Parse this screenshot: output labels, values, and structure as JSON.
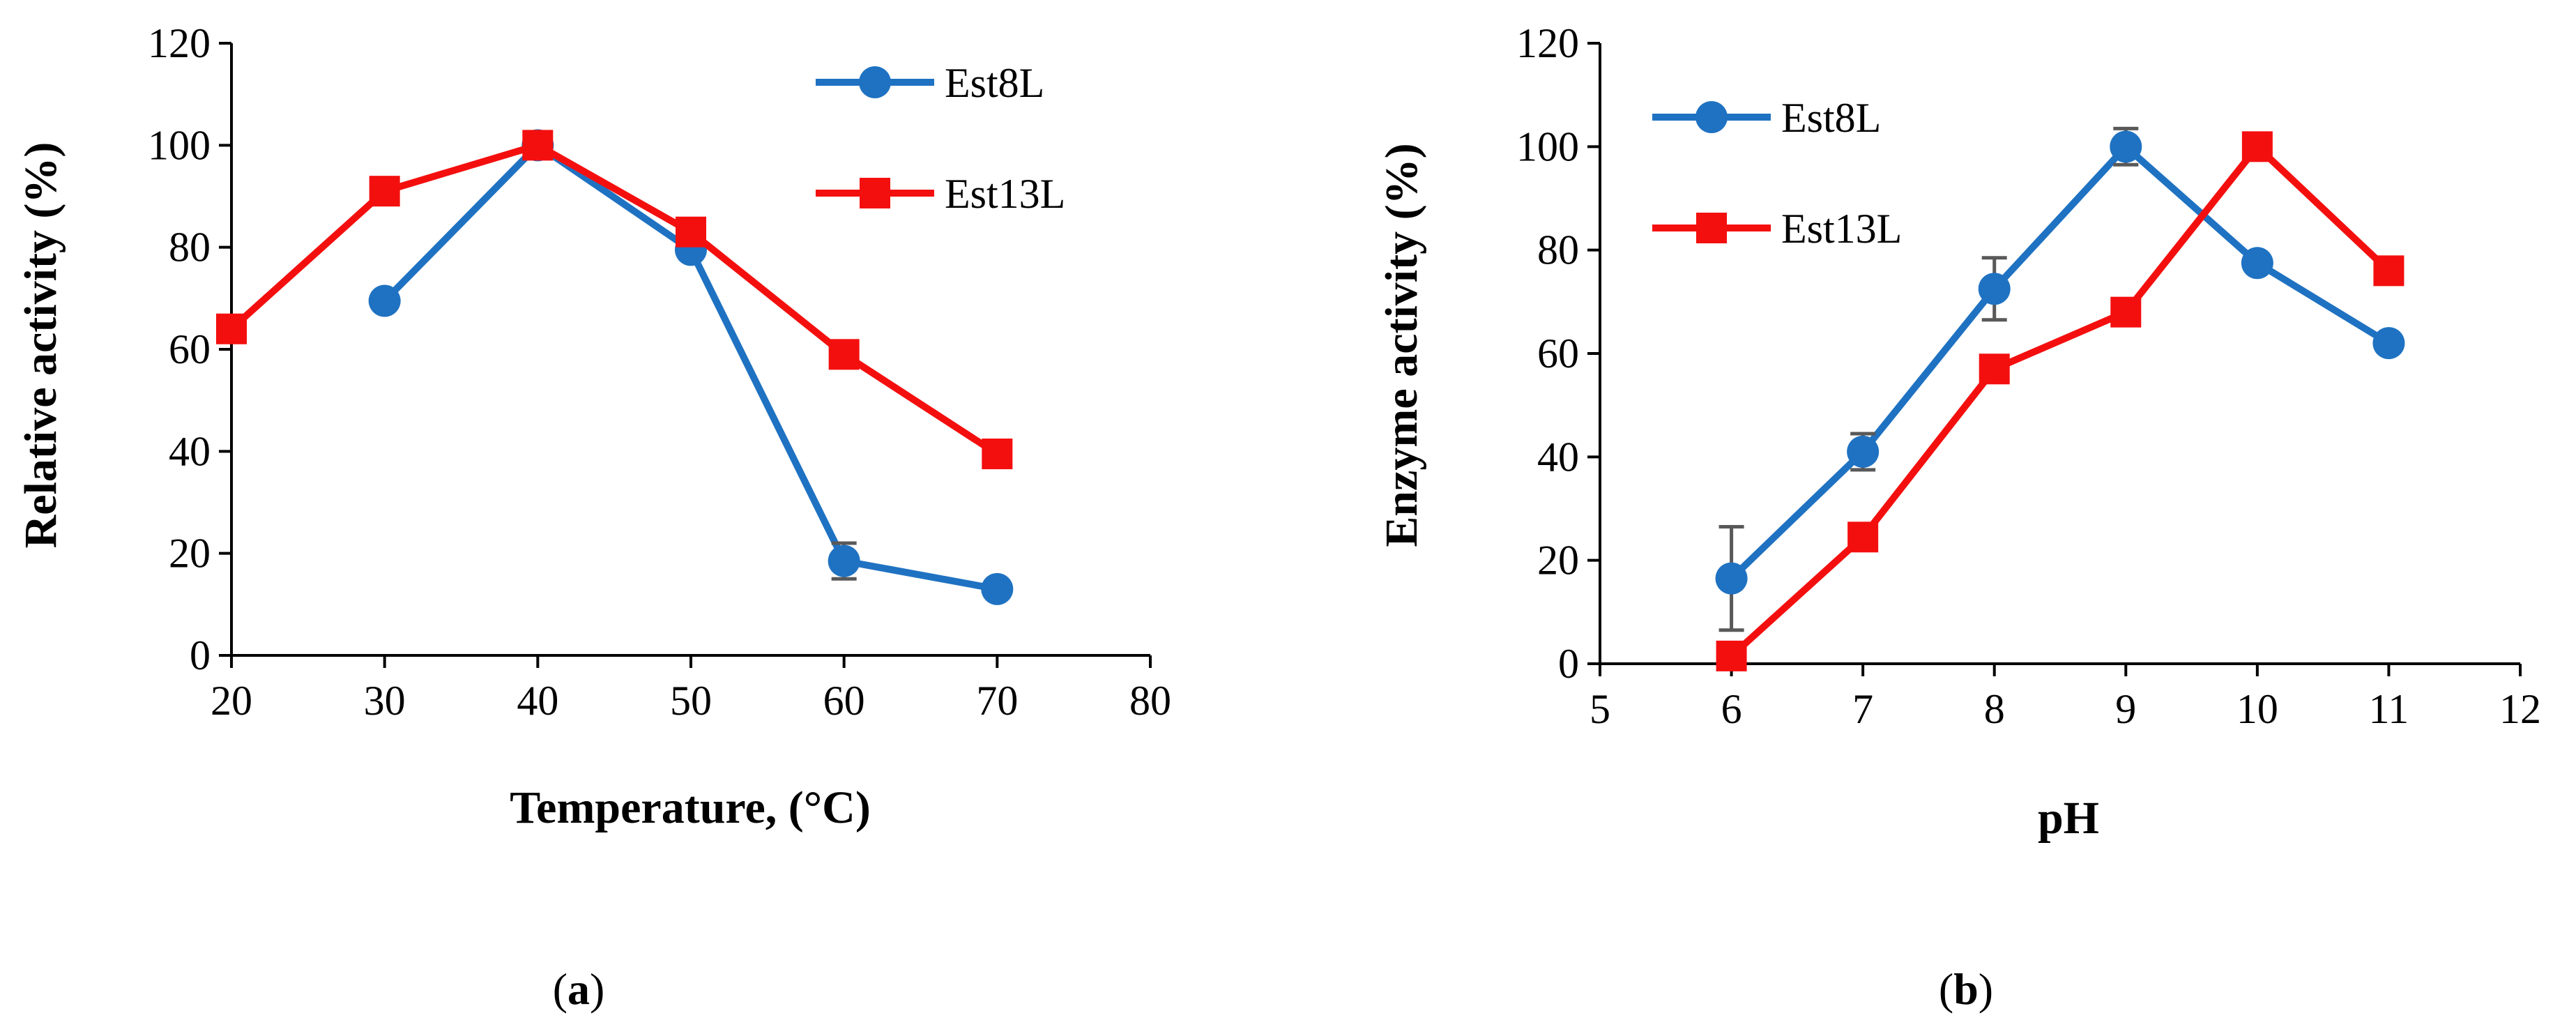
{
  "colors": {
    "est8l": "#1F72C2",
    "est13l": "#F40F0F",
    "axis": "#000000",
    "errorbar": "#595959"
  },
  "panels": [
    {
      "id": "a",
      "label": "a",
      "ylabel": "Relative activity (%)",
      "xlabel": "Temperature, (°C)"
    },
    {
      "id": "b",
      "label": "b",
      "ylabel": "Enzyme activity (%)",
      "xlabel": "pH"
    }
  ],
  "chart_data": [
    {
      "type": "line",
      "xlabel": "Temperature, (°C)",
      "ylabel": "Relative activity (%)",
      "xlim": [
        20,
        80
      ],
      "ylim": [
        0,
        120
      ],
      "xticks": [
        20,
        30,
        40,
        50,
        60,
        70,
        80
      ],
      "yticks": [
        0,
        20,
        40,
        60,
        80,
        100,
        120
      ],
      "grid": false,
      "legend_position": "top-right",
      "series": [
        {
          "name": "Est8L",
          "marker": "circle",
          "color": "#1F72C2",
          "x": [
            30,
            40,
            50,
            60,
            70
          ],
          "y": [
            69.5,
            100,
            79.5,
            18.5,
            13
          ],
          "error": [
            0,
            0,
            0,
            3.5,
            0
          ]
        },
        {
          "name": "Est13L",
          "marker": "square",
          "color": "#F40F0F",
          "x": [
            20,
            30,
            40,
            50,
            60,
            70
          ],
          "y": [
            64,
            91,
            100,
            83,
            59,
            39.5
          ],
          "error": [
            0,
            0,
            0,
            0,
            0,
            0
          ]
        }
      ]
    },
    {
      "type": "line",
      "xlabel": "pH",
      "ylabel": "Enzyme activity (%)",
      "xlim": [
        5,
        12
      ],
      "ylim": [
        0,
        120
      ],
      "xticks": [
        5,
        6,
        7,
        8,
        9,
        10,
        11,
        12
      ],
      "yticks": [
        0,
        20,
        40,
        60,
        80,
        100,
        120
      ],
      "grid": false,
      "legend_position": "top-left",
      "series": [
        {
          "name": "Est8L",
          "marker": "circle",
          "color": "#1F72C2",
          "x": [
            6,
            7,
            8,
            9,
            10,
            11
          ],
          "y": [
            16.5,
            41,
            72.5,
            100,
            77.5,
            62
          ],
          "error": [
            10,
            3.5,
            6,
            3.5,
            0,
            0
          ]
        },
        {
          "name": "Est13L",
          "marker": "square",
          "color": "#F40F0F",
          "x": [
            6,
            7,
            8,
            9,
            10,
            11
          ],
          "y": [
            1.5,
            24.5,
            57,
            68,
            100,
            76
          ],
          "error": [
            0,
            0,
            0,
            0,
            0,
            0
          ]
        }
      ]
    }
  ]
}
